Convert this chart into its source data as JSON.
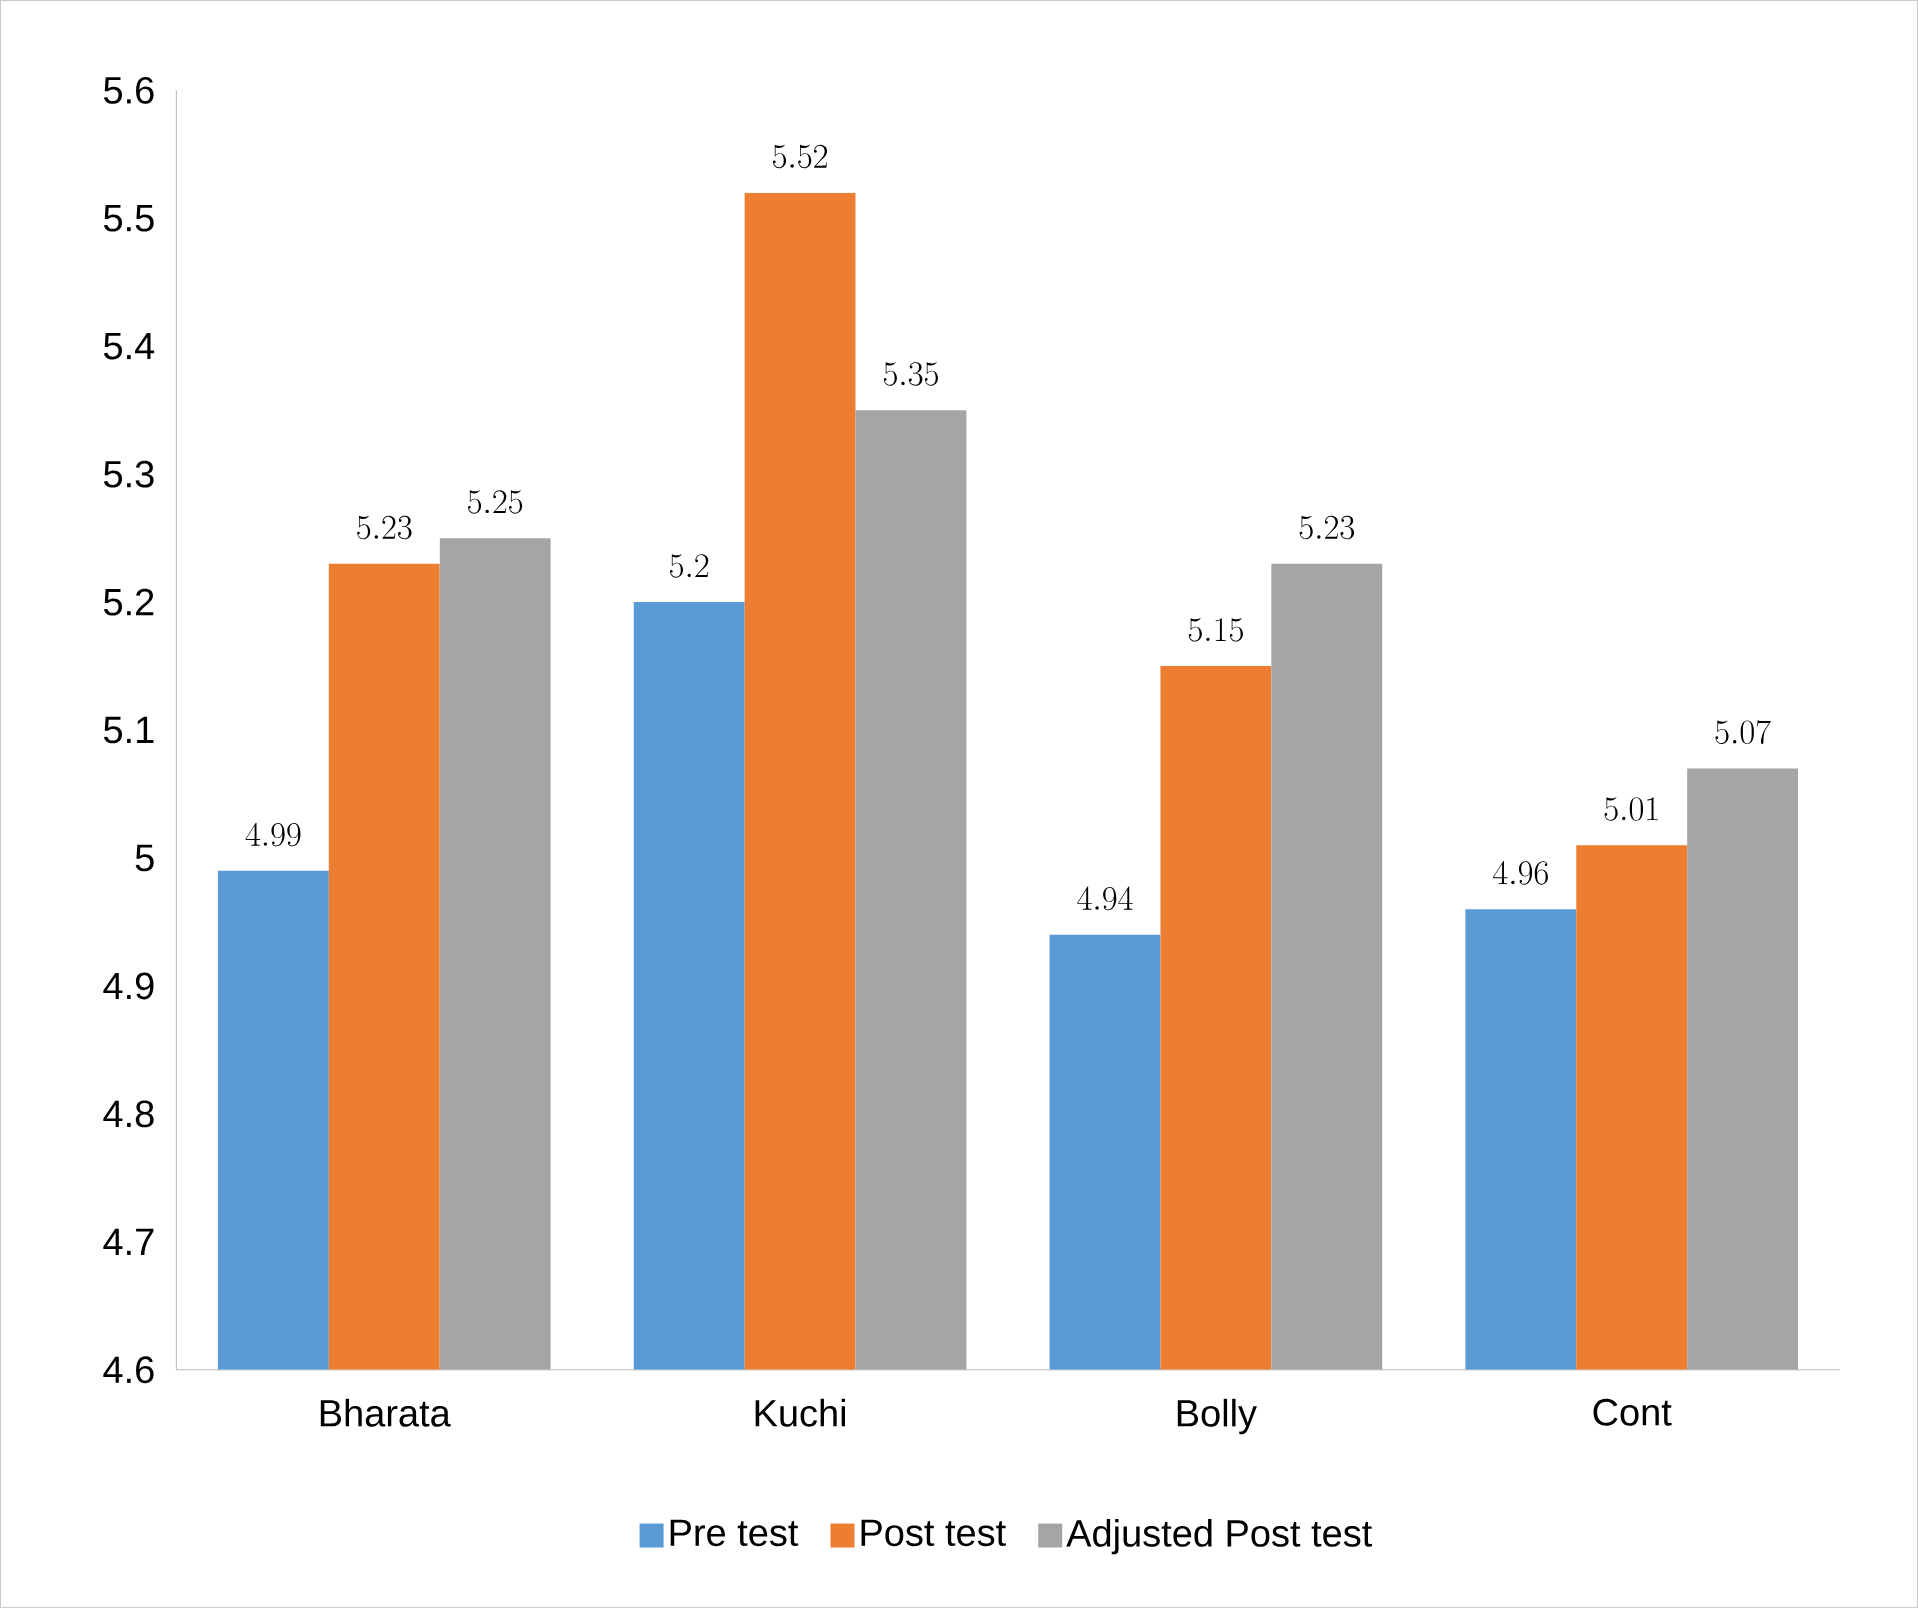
{
  "chart_data": {
    "type": "bar",
    "categories": [
      "Bharata",
      "Kuchi",
      "Bolly",
      "Cont"
    ],
    "series": [
      {
        "name": "Pre test",
        "color": "#5b9bd5",
        "values": [
          4.99,
          5.2,
          4.94,
          4.96
        ]
      },
      {
        "name": "Post test",
        "color": "#ed7d31",
        "values": [
          5.23,
          5.52,
          5.15,
          5.01
        ]
      },
      {
        "name": "Adjusted Post test",
        "color": "#a5a5a5",
        "values": [
          5.25,
          5.35,
          5.23,
          5.07
        ]
      }
    ],
    "ylim": [
      4.6,
      5.6
    ],
    "yticks": [
      4.6,
      4.7,
      4.8,
      4.9,
      5,
      5.1,
      5.2,
      5.3,
      5.4,
      5.5,
      5.6
    ],
    "data_labels": true,
    "legend": "bottom",
    "grid": false
  }
}
